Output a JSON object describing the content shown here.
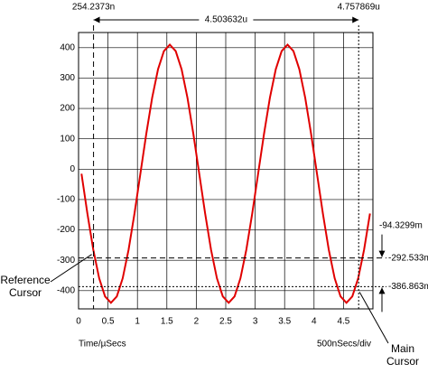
{
  "chart_data": {
    "type": "line",
    "x": [
      0.05,
      0.15,
      0.25,
      0.35,
      0.45,
      0.55,
      0.65,
      0.75,
      0.85,
      0.95,
      1.05,
      1.15,
      1.25,
      1.35,
      1.45,
      1.55,
      1.65,
      1.75,
      1.85,
      1.95,
      2.05,
      2.15,
      2.25,
      2.35,
      2.45,
      2.55,
      2.65,
      2.75,
      2.85,
      2.95,
      3.05,
      3.15,
      3.25,
      3.35,
      3.45,
      3.55,
      3.65,
      3.75,
      3.85,
      3.95,
      4.05,
      4.15,
      4.25,
      4.35,
      4.45,
      4.55,
      4.65,
      4.75,
      4.85,
      4.95
    ],
    "series": [
      {
        "color": "#e00000",
        "values": [
          -15,
          -146,
          -265,
          -359,
          -419,
          -440,
          -419,
          -359,
          -265,
          -146,
          -15,
          116,
          235,
          329,
          389,
          410,
          389,
          329,
          235,
          116,
          -15,
          -146,
          -265,
          -359,
          -419,
          -440,
          -419,
          -359,
          -265,
          -146,
          -15,
          116,
          235,
          329,
          389,
          410,
          389,
          329,
          235,
          116,
          -15,
          -146,
          -265,
          -359,
          -419,
          -440,
          -419,
          -359,
          -265,
          -146
        ]
      }
    ],
    "xlim": [
      0,
      5
    ],
    "xticks": [
      0,
      0.5,
      1,
      1.5,
      2,
      2.5,
      3,
      3.5,
      4,
      4.5
    ],
    "ylim": [
      -460,
      450
    ],
    "yticks": [
      -400,
      -300,
      -200,
      -100,
      0,
      100,
      200,
      300,
      400
    ],
    "grid": true,
    "x_label": "Time/µSecs",
    "x_scale_label": "500nSecs/div",
    "cursors": {
      "reference": {
        "x": 0.2542373,
        "x_label": "254.2373n",
        "y": -292.533,
        "y_label": "-292.533m",
        "name": [
          "Reference",
          "Cursor"
        ]
      },
      "main": {
        "x": 4.757869,
        "x_label": "4.757869u",
        "y": -386.863,
        "y_label": "-386.863m",
        "name": [
          "Main",
          "Cursor"
        ]
      },
      "delta": {
        "x": 4.503632,
        "x_label": "4.503632u",
        "y": -94.3299,
        "y_label": "-94.3299m"
      }
    }
  }
}
